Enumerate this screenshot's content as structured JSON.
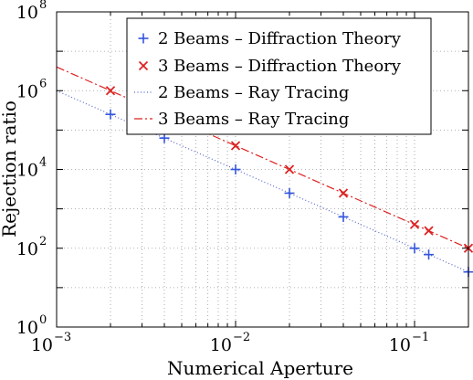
{
  "chart_data": {
    "type": "scatter",
    "xlabel": "Numerical Aperture",
    "ylabel": "Rejection ratio",
    "x_scale": "log",
    "y_scale": "log",
    "xlim": [
      0.001,
      0.2
    ],
    "ylim": [
      1,
      100000000
    ],
    "grid": true,
    "legend_position": "top-right",
    "x_ticks": [
      {
        "value": 0.001,
        "base": "10",
        "exp": "−3"
      },
      {
        "value": 0.01,
        "base": "10",
        "exp": "−2"
      },
      {
        "value": 0.1,
        "base": "10",
        "exp": "−1"
      }
    ],
    "y_ticks": [
      {
        "value": 1,
        "base": "10",
        "exp": "0"
      },
      {
        "value": 100,
        "base": "10",
        "exp": "2"
      },
      {
        "value": 10000,
        "base": "10",
        "exp": "4"
      },
      {
        "value": 1000000,
        "base": "10",
        "exp": "6"
      },
      {
        "value": 100000000,
        "base": "10",
        "exp": "8"
      }
    ],
    "series": [
      {
        "name": "2 Beams – Diffraction Theory",
        "kind": "marker",
        "marker": "+",
        "color": "#3355dd",
        "x": [
          0.002,
          0.004,
          0.01,
          0.02,
          0.04,
          0.1,
          0.12,
          0.2
        ],
        "y": [
          250000,
          62500,
          10000,
          2500,
          625,
          100,
          69,
          25
        ]
      },
      {
        "name": "3 Beams – Diffraction Theory",
        "kind": "marker",
        "marker": "x",
        "color": "#dd2222",
        "x": [
          0.002,
          0.01,
          0.02,
          0.04,
          0.1,
          0.12,
          0.2
        ],
        "y": [
          1000000,
          40000,
          10000,
          2500,
          400,
          278,
          100
        ]
      },
      {
        "name": "2 Beams – Ray Tracing",
        "kind": "line",
        "dash": "dotted",
        "color": "#5566cc",
        "x": [
          0.001,
          0.2
        ],
        "y": [
          1000000,
          25
        ]
      },
      {
        "name": "3 Beams – Ray Tracing",
        "kind": "line",
        "dash": "dashdot",
        "color": "#dd2222",
        "x": [
          0.001,
          0.2
        ],
        "y": [
          4000000,
          100
        ]
      }
    ]
  }
}
